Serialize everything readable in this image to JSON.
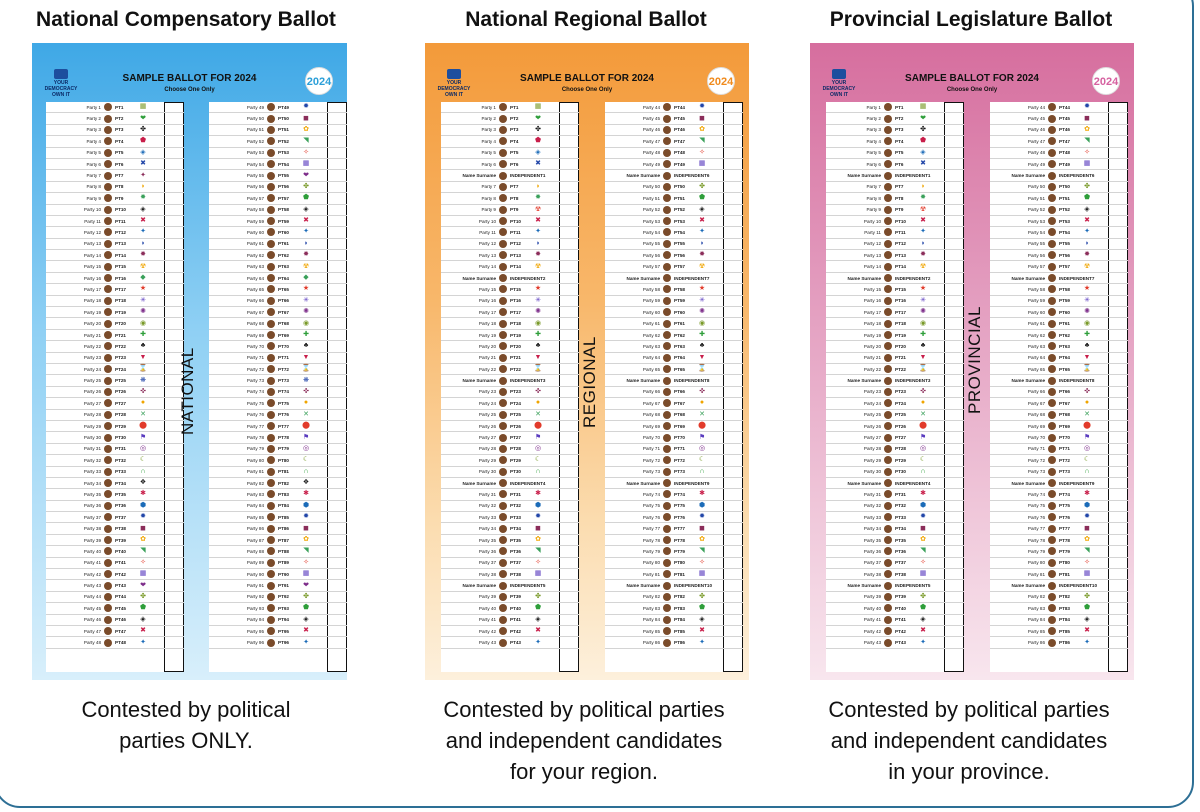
{
  "common": {
    "sample_title": "SAMPLE BALLOT FOR 2024",
    "logo_text": "YOUR DEMOCRACY OWN IT",
    "vote_text": "Choose One Only",
    "year_badge": "2024"
  },
  "symbols": [
    "✚",
    "◆",
    "✖",
    "▦",
    "✹",
    "☾",
    "●",
    "♣",
    "★",
    "✦",
    "❤",
    "◼",
    "∩",
    "✕",
    "▼",
    "✳",
    "◗",
    "✤",
    "✿",
    "❖",
    "⬤",
    "⌛",
    "✺",
    "✸",
    "⬟",
    "◥",
    "✱",
    "⚑",
    "❋",
    "◉",
    "☢",
    "◈",
    "✧",
    "⬢",
    "◎",
    "✜"
  ],
  "panels": [
    {
      "title": "National Compensatory Ballot",
      "vertical_label": "NATIONAL",
      "caption_lines": [
        "Contested by political",
        "parties ONLY."
      ],
      "left_rows": [
        [
          "Party 1",
          "PT1"
        ],
        [
          "Party 2",
          "PT2"
        ],
        [
          "Party 3",
          "PT3"
        ],
        [
          "Party 4",
          "PT4"
        ],
        [
          "Party 5",
          "PT5"
        ],
        [
          "Party 6",
          "PT6"
        ],
        [
          "Party 7",
          "PT7"
        ],
        [
          "Party 8",
          "PT8"
        ],
        [
          "Party 9",
          "PT9"
        ],
        [
          "Party 10",
          "PT10"
        ],
        [
          "Party 11",
          "PT11"
        ],
        [
          "Party 12",
          "PT12"
        ],
        [
          "Party 13",
          "PT13"
        ],
        [
          "Party 14",
          "PT14"
        ],
        [
          "Party 15",
          "PT15"
        ],
        [
          "Party 16",
          "PT16"
        ],
        [
          "Party 17",
          "PT17"
        ],
        [
          "Party 18",
          "PT18"
        ],
        [
          "Party 19",
          "PT19"
        ],
        [
          "Party 20",
          "PT20"
        ],
        [
          "Party 21",
          "PT21"
        ],
        [
          "Party 22",
          "PT22"
        ],
        [
          "Party 23",
          "PT23"
        ],
        [
          "Party 24",
          "PT24"
        ],
        [
          "Party 25",
          "PT25"
        ],
        [
          "Party 26",
          "PT26"
        ],
        [
          "Party 27",
          "PT27"
        ],
        [
          "Party 28",
          "PT28"
        ],
        [
          "Party 29",
          "PT29"
        ],
        [
          "Party 30",
          "PT30"
        ],
        [
          "Party 31",
          "PT31"
        ],
        [
          "Party 32",
          "PT32"
        ],
        [
          "Party 33",
          "PT33"
        ],
        [
          "Party 34",
          "PT34"
        ],
        [
          "Party 35",
          "PT35"
        ],
        [
          "Party 36",
          "PT36"
        ],
        [
          "Party 37",
          "PT37"
        ],
        [
          "Party 38",
          "PT38"
        ],
        [
          "Party 39",
          "PT39"
        ],
        [
          "Party 40",
          "PT40"
        ],
        [
          "Party 41",
          "PT41"
        ],
        [
          "Party 42",
          "PT42"
        ],
        [
          "Party 43",
          "PT43"
        ],
        [
          "Party 44",
          "PT44"
        ],
        [
          "Party 45",
          "PT45"
        ],
        [
          "Party 46",
          "PT46"
        ],
        [
          "Party 47",
          "PT47"
        ],
        [
          "Party 48",
          "PT48"
        ]
      ],
      "right_rows": [
        [
          "Party 49",
          "PT49"
        ],
        [
          "Party 50",
          "PT50"
        ],
        [
          "Party 51",
          "PT51"
        ],
        [
          "Party 52",
          "PT52"
        ],
        [
          "Party 53",
          "PT53"
        ],
        [
          "Party 54",
          "PT54"
        ],
        [
          "Party 55",
          "PT55"
        ],
        [
          "Party 56",
          "PT56"
        ],
        [
          "Party 57",
          "PT57"
        ],
        [
          "Party 58",
          "PT58"
        ],
        [
          "Party 59",
          "PT59"
        ],
        [
          "Party 60",
          "PT60"
        ],
        [
          "Party 61",
          "PT61"
        ],
        [
          "Party 62",
          "PT62"
        ],
        [
          "Party 63",
          "PT63"
        ],
        [
          "Party 64",
          "PT64"
        ],
        [
          "Party 65",
          "PT65"
        ],
        [
          "Party 66",
          "PT66"
        ],
        [
          "Party 67",
          "PT67"
        ],
        [
          "Party 68",
          "PT68"
        ],
        [
          "Party 69",
          "PT69"
        ],
        [
          "Party 70",
          "PT70"
        ],
        [
          "Party 71",
          "PT71"
        ],
        [
          "Party 72",
          "PT72"
        ],
        [
          "Party 73",
          "PT73"
        ],
        [
          "Party 74",
          "PT74"
        ],
        [
          "Party 75",
          "PT75"
        ],
        [
          "Party 76",
          "PT76"
        ],
        [
          "Party 77",
          "PT77"
        ],
        [
          "Party 78",
          "PT78"
        ],
        [
          "Party 79",
          "PT79"
        ],
        [
          "Party 80",
          "PT80"
        ],
        [
          "Party 81",
          "PT81"
        ],
        [
          "Party 82",
          "PT82"
        ],
        [
          "Party 83",
          "PT83"
        ],
        [
          "Party 84",
          "PT84"
        ],
        [
          "Party 85",
          "PT85"
        ],
        [
          "Party 86",
          "PT86"
        ],
        [
          "Party 87",
          "PT87"
        ],
        [
          "Party 88",
          "PT88"
        ],
        [
          "Party 89",
          "PT89"
        ],
        [
          "Party 90",
          "PT90"
        ],
        [
          "Party 91",
          "PT91"
        ],
        [
          "Party 92",
          "PT92"
        ],
        [
          "Party 93",
          "PT93"
        ],
        [
          "Party 94",
          "PT94"
        ],
        [
          "Party 95",
          "PT95"
        ],
        [
          "Party 96",
          "PT96"
        ]
      ]
    },
    {
      "title": "National Regional Ballot",
      "vertical_label": "REGIONAL",
      "caption_lines": [
        "Contested by political parties",
        "and independent candidates",
        "for your region."
      ],
      "left_rows": [
        [
          "Party 1",
          "PT1"
        ],
        [
          "Party 2",
          "PT2"
        ],
        [
          "Party 3",
          "PT3"
        ],
        [
          "Party 4",
          "PT4"
        ],
        [
          "Party 5",
          "PT5"
        ],
        [
          "Party 6",
          "PT6"
        ],
        [
          "Name Surname",
          "INDEPENDENT1"
        ],
        [
          "Party 7",
          "PT7"
        ],
        [
          "Party 8",
          "PT8"
        ],
        [
          "Party 9",
          "PT9"
        ],
        [
          "Party 10",
          "PT10"
        ],
        [
          "Party 11",
          "PT11"
        ],
        [
          "Party 12",
          "PT12"
        ],
        [
          "Party 13",
          "PT13"
        ],
        [
          "Party 14",
          "PT14"
        ],
        [
          "Name Surname",
          "INDEPENDENT2"
        ],
        [
          "Party 15",
          "PT15"
        ],
        [
          "Party 16",
          "PT16"
        ],
        [
          "Party 17",
          "PT17"
        ],
        [
          "Party 18",
          "PT18"
        ],
        [
          "Party 19",
          "PT19"
        ],
        [
          "Party 20",
          "PT20"
        ],
        [
          "Party 21",
          "PT21"
        ],
        [
          "Party 22",
          "PT22"
        ],
        [
          "Name Surname",
          "INDEPENDENT3"
        ],
        [
          "Party 23",
          "PT23"
        ],
        [
          "Party 24",
          "PT24"
        ],
        [
          "Party 25",
          "PT25"
        ],
        [
          "Party 26",
          "PT26"
        ],
        [
          "Party 27",
          "PT27"
        ],
        [
          "Party 28",
          "PT28"
        ],
        [
          "Party 29",
          "PT29"
        ],
        [
          "Party 30",
          "PT30"
        ],
        [
          "Name Surname",
          "INDEPENDENT4"
        ],
        [
          "Party 31",
          "PT31"
        ],
        [
          "Party 32",
          "PT32"
        ],
        [
          "Party 33",
          "PT33"
        ],
        [
          "Party 34",
          "PT34"
        ],
        [
          "Party 35",
          "PT35"
        ],
        [
          "Party 36",
          "PT36"
        ],
        [
          "Party 37",
          "PT37"
        ],
        [
          "Party 38",
          "PT38"
        ],
        [
          "Name Surname",
          "INDEPENDENT5"
        ],
        [
          "Party 39",
          "PT39"
        ],
        [
          "Party 40",
          "PT40"
        ],
        [
          "Party 41",
          "PT41"
        ],
        [
          "Party 42",
          "PT42"
        ],
        [
          "Party 43",
          "PT43"
        ]
      ],
      "right_rows": [
        [
          "Party 44",
          "PT44"
        ],
        [
          "Party 45",
          "PT45"
        ],
        [
          "Party 46",
          "PT46"
        ],
        [
          "Party 47",
          "PT47"
        ],
        [
          "Party 48",
          "PT48"
        ],
        [
          "Party 49",
          "PT49"
        ],
        [
          "Name Surname",
          "INDEPENDENT6"
        ],
        [
          "Party 50",
          "PT50"
        ],
        [
          "Party 51",
          "PT51"
        ],
        [
          "Party 52",
          "PT52"
        ],
        [
          "Party 53",
          "PT53"
        ],
        [
          "Party 54",
          "PT54"
        ],
        [
          "Party 55",
          "PT55"
        ],
        [
          "Party 56",
          "PT56"
        ],
        [
          "Party 57",
          "PT57"
        ],
        [
          "Name Surname",
          "INDEPENDENT7"
        ],
        [
          "Party 58",
          "PT58"
        ],
        [
          "Party 59",
          "PT59"
        ],
        [
          "Party 60",
          "PT60"
        ],
        [
          "Party 61",
          "PT61"
        ],
        [
          "Party 62",
          "PT62"
        ],
        [
          "Party 63",
          "PT63"
        ],
        [
          "Party 64",
          "PT64"
        ],
        [
          "Party 65",
          "PT65"
        ],
        [
          "Name Surname",
          "INDEPENDENT8"
        ],
        [
          "Party 66",
          "PT66"
        ],
        [
          "Party 67",
          "PT67"
        ],
        [
          "Party 68",
          "PT68"
        ],
        [
          "Party 69",
          "PT69"
        ],
        [
          "Party 70",
          "PT70"
        ],
        [
          "Party 71",
          "PT71"
        ],
        [
          "Party 72",
          "PT72"
        ],
        [
          "Party 73",
          "PT73"
        ],
        [
          "Name Surname",
          "INDEPENDENT9"
        ],
        [
          "Party 74",
          "PT74"
        ],
        [
          "Party 75",
          "PT75"
        ],
        [
          "Party 76",
          "PT76"
        ],
        [
          "Party 77",
          "PT77"
        ],
        [
          "Party 78",
          "PT78"
        ],
        [
          "Party 79",
          "PT79"
        ],
        [
          "Party 80",
          "PT80"
        ],
        [
          "Party 81",
          "PT81"
        ],
        [
          "Name Surname",
          "INDEPENDENT10"
        ],
        [
          "Party 82",
          "PT82"
        ],
        [
          "Party 83",
          "PT83"
        ],
        [
          "Party 84",
          "PT84"
        ],
        [
          "Party 85",
          "PT85"
        ],
        [
          "Party 86",
          "PT86"
        ]
      ]
    },
    {
      "title": "Provincial Legislature Ballot",
      "vertical_label": "PROVINCIAL",
      "caption_lines": [
        "Contested by political parties",
        "and independent candidates",
        "in your province."
      ],
      "left_rows": [
        [
          "Party 1",
          "PT1"
        ],
        [
          "Party 2",
          "PT2"
        ],
        [
          "Party 3",
          "PT3"
        ],
        [
          "Party 4",
          "PT4"
        ],
        [
          "Party 5",
          "PT5"
        ],
        [
          "Party 6",
          "PT6"
        ],
        [
          "Name Surname",
          "INDEPENDENT1"
        ],
        [
          "Party 7",
          "PT7"
        ],
        [
          "Party 8",
          "PT8"
        ],
        [
          "Party 9",
          "PT9"
        ],
        [
          "Party 10",
          "PT10"
        ],
        [
          "Party 11",
          "PT11"
        ],
        [
          "Party 12",
          "PT12"
        ],
        [
          "Party 13",
          "PT13"
        ],
        [
          "Party 14",
          "PT14"
        ],
        [
          "Name Surname",
          "INDEPENDENT2"
        ],
        [
          "Party 15",
          "PT15"
        ],
        [
          "Party 16",
          "PT16"
        ],
        [
          "Party 17",
          "PT17"
        ],
        [
          "Party 18",
          "PT18"
        ],
        [
          "Party 19",
          "PT19"
        ],
        [
          "Party 20",
          "PT20"
        ],
        [
          "Party 21",
          "PT21"
        ],
        [
          "Party 22",
          "PT22"
        ],
        [
          "Name Surname",
          "INDEPENDENT3"
        ],
        [
          "Party 23",
          "PT23"
        ],
        [
          "Party 24",
          "PT24"
        ],
        [
          "Party 25",
          "PT25"
        ],
        [
          "Party 26",
          "PT26"
        ],
        [
          "Party 27",
          "PT27"
        ],
        [
          "Party 28",
          "PT28"
        ],
        [
          "Party 29",
          "PT29"
        ],
        [
          "Party 30",
          "PT30"
        ],
        [
          "Name Surname",
          "INDEPENDENT4"
        ],
        [
          "Party 31",
          "PT31"
        ],
        [
          "Party 32",
          "PT32"
        ],
        [
          "Party 33",
          "PT33"
        ],
        [
          "Party 34",
          "PT34"
        ],
        [
          "Party 35",
          "PT35"
        ],
        [
          "Party 36",
          "PT36"
        ],
        [
          "Party 37",
          "PT37"
        ],
        [
          "Party 38",
          "PT38"
        ],
        [
          "Name Surname",
          "INDEPENDENT5"
        ],
        [
          "Party 39",
          "PT39"
        ],
        [
          "Party 40",
          "PT40"
        ],
        [
          "Party 41",
          "PT41"
        ],
        [
          "Party 42",
          "PT42"
        ],
        [
          "Party 43",
          "PT43"
        ]
      ],
      "right_rows": [
        [
          "Party 44",
          "PT44"
        ],
        [
          "Party 45",
          "PT45"
        ],
        [
          "Party 46",
          "PT46"
        ],
        [
          "Party 47",
          "PT47"
        ],
        [
          "Party 48",
          "PT48"
        ],
        [
          "Party 49",
          "PT49"
        ],
        [
          "Name Surname",
          "INDEPENDENT6"
        ],
        [
          "Party 50",
          "PT50"
        ],
        [
          "Party 51",
          "PT51"
        ],
        [
          "Party 52",
          "PT52"
        ],
        [
          "Party 53",
          "PT53"
        ],
        [
          "Party 54",
          "PT54"
        ],
        [
          "Party 55",
          "PT55"
        ],
        [
          "Party 56",
          "PT56"
        ],
        [
          "Party 57",
          "PT57"
        ],
        [
          "Name Surname",
          "INDEPENDENT7"
        ],
        [
          "Party 58",
          "PT58"
        ],
        [
          "Party 59",
          "PT59"
        ],
        [
          "Party 60",
          "PT60"
        ],
        [
          "Party 61",
          "PT61"
        ],
        [
          "Party 62",
          "PT62"
        ],
        [
          "Party 63",
          "PT63"
        ],
        [
          "Party 64",
          "PT64"
        ],
        [
          "Party 65",
          "PT65"
        ],
        [
          "Name Surname",
          "INDEPENDENT8"
        ],
        [
          "Party 66",
          "PT66"
        ],
        [
          "Party 67",
          "PT67"
        ],
        [
          "Party 68",
          "PT68"
        ],
        [
          "Party 69",
          "PT69"
        ],
        [
          "Party 70",
          "PT70"
        ],
        [
          "Party 71",
          "PT71"
        ],
        [
          "Party 72",
          "PT72"
        ],
        [
          "Party 73",
          "PT73"
        ],
        [
          "Name Surname",
          "INDEPENDENT9"
        ],
        [
          "Party 74",
          "PT74"
        ],
        [
          "Party 75",
          "PT75"
        ],
        [
          "Party 76",
          "PT76"
        ],
        [
          "Party 77",
          "PT77"
        ],
        [
          "Party 78",
          "PT78"
        ],
        [
          "Party 79",
          "PT79"
        ],
        [
          "Party 80",
          "PT80"
        ],
        [
          "Party 81",
          "PT81"
        ],
        [
          "Name Surname",
          "INDEPENDENT10"
        ],
        [
          "Party 82",
          "PT82"
        ],
        [
          "Party 83",
          "PT83"
        ],
        [
          "Party 84",
          "PT84"
        ],
        [
          "Party 85",
          "PT85"
        ],
        [
          "Party 86",
          "PT86"
        ]
      ]
    }
  ]
}
